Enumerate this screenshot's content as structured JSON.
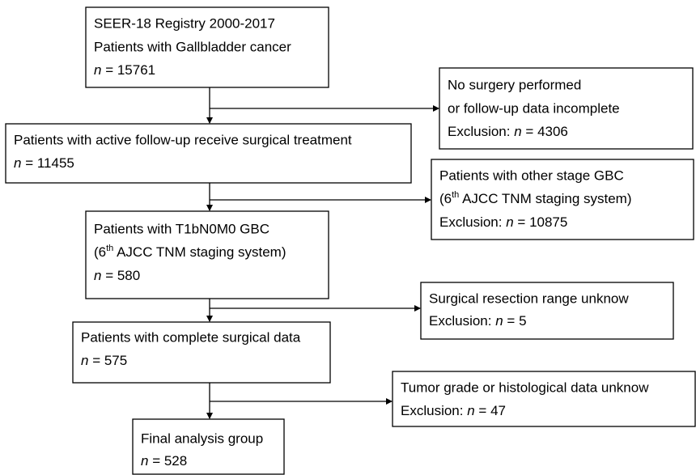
{
  "boxes": [
    {
      "lines": [
        "SEER-18 Registry 2000-2017",
        "Patients with Gallbladder cancer",
        {
          "n": "n",
          "value": "= 15761"
        }
      ]
    },
    {
      "lines": [
        "No surgery performed",
        "or follow-up data incomplete",
        {
          "label": "Exclusion:",
          "n": "n",
          "value": "= 4306"
        }
      ]
    },
    {
      "lines": [
        "Patients with active follow-up receive surgical treatment",
        {
          "n": "n",
          "value": "= 11455"
        }
      ]
    },
    {
      "lines": [
        "Patients with other stage GBC",
        {
          "pre": "(6",
          "sup": "th",
          "post": " AJCC TNM staging system)"
        },
        {
          "label": "Exclusion:",
          "n": "n",
          "value": "= 10875"
        }
      ]
    },
    {
      "lines": [
        "Patients with T1bN0M0 GBC",
        {
          "pre": "(6",
          "sup": "th",
          "post": " AJCC TNM staging system)"
        },
        {
          "n": "n",
          "value": "= 580"
        }
      ]
    },
    {
      "lines": [
        "Surgical resection range unknow",
        {
          "label": "Exclusion:",
          "n": "n",
          "value": "= 5"
        }
      ]
    },
    {
      "lines": [
        "Patients with complete surgical data",
        {
          "n": "n",
          "value": "= 575"
        }
      ]
    },
    {
      "lines": [
        "Tumor grade or histological data unknow",
        {
          "label": "Exclusion:",
          "n": "n",
          "value": "= 47"
        }
      ]
    },
    {
      "lines": [
        "Final analysis group",
        {
          "n": "n",
          "value": "= 528"
        }
      ]
    }
  ]
}
